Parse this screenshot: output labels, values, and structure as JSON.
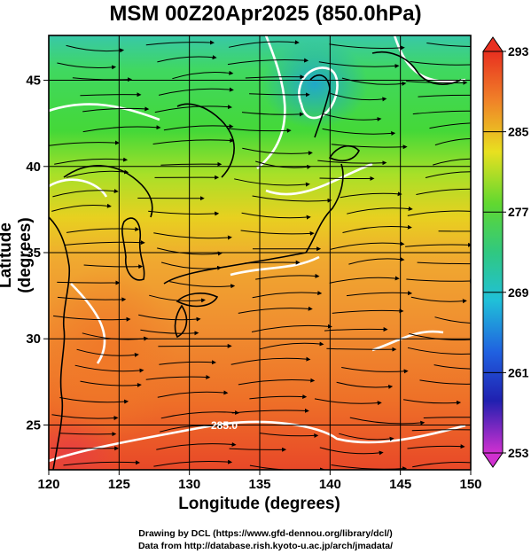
{
  "title": "MSM 00Z20Apr2025 (850.0hPa)",
  "axes": {
    "xlabel": "Longitude (degrees)",
    "ylabel": "Latitude  (degrees)",
    "x_ticks": [
      "120",
      "125",
      "130",
      "135",
      "140",
      "145",
      "150"
    ],
    "y_ticks": [
      "25",
      "30",
      "35",
      "40",
      "45"
    ]
  },
  "colorbar": {
    "ticks": [
      "293",
      "285",
      "277",
      "269",
      "261",
      "253"
    ],
    "range": [
      253,
      293
    ]
  },
  "contour_labels": [
    "285.0"
  ],
  "credits": {
    "line1": "Drawing by DCL (https://www.gfd-dennou.org/library/dcl/)",
    "line2": "Data from http://database.rish.kyoto-u.ac.jp/arch/jmadata/"
  },
  "colors": {
    "cold": "#2ab8a8",
    "cool": "#3ed848",
    "mild": "#b8e020",
    "warm": "#f0a030",
    "hot": "#e84020"
  },
  "map": {
    "lon_range": [
      120,
      150
    ],
    "lat_range": [
      22.4,
      47.6
    ],
    "grid_step_deg": 5
  }
}
